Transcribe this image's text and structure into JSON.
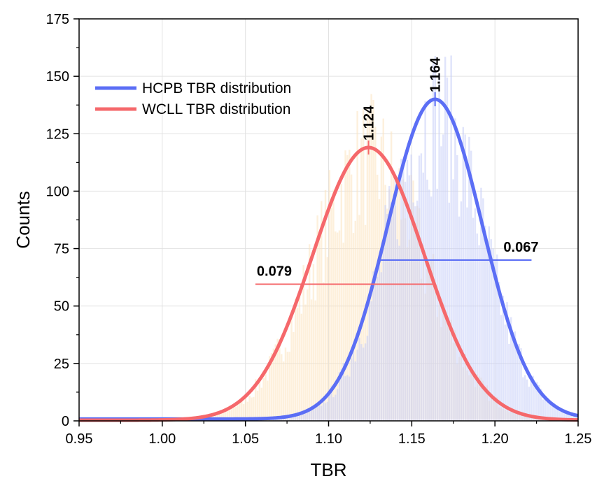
{
  "chart_data": {
    "type": "line",
    "title": "",
    "xlabel": "TBR",
    "ylabel": "Counts",
    "xlim": [
      0.95,
      1.25
    ],
    "ylim": [
      0,
      175
    ],
    "x_ticks": [
      "0.95",
      "1.00",
      "1.05",
      "1.10",
      "1.15",
      "1.20",
      "1.25"
    ],
    "y_ticks": [
      "0",
      "25",
      "50",
      "75",
      "100",
      "125",
      "150",
      "175"
    ],
    "grid": true,
    "legend_position": "top-left",
    "series": [
      {
        "name": "HCPB TBR distribution",
        "color": "#5b6ef5",
        "histogram_color": "#c7cdf7",
        "mean": 1.164,
        "peak": 140,
        "width": 0.067,
        "baseline": 0.8,
        "width_bar_y": 70,
        "width_bar_x": [
          1.13,
          1.222
        ],
        "width_label": "0.067",
        "peak_label": "1.164"
      },
      {
        "name": "WCLL TBR distribution",
        "color": "#f5686b",
        "histogram_color": "#fbe4bf",
        "mean": 1.124,
        "peak": 119,
        "width": 0.079,
        "baseline": 0.3,
        "width_bar_y": 59.5,
        "width_bar_x": [
          1.056,
          1.164
        ],
        "width_label": "0.079",
        "peak_label": "1.124"
      }
    ]
  }
}
